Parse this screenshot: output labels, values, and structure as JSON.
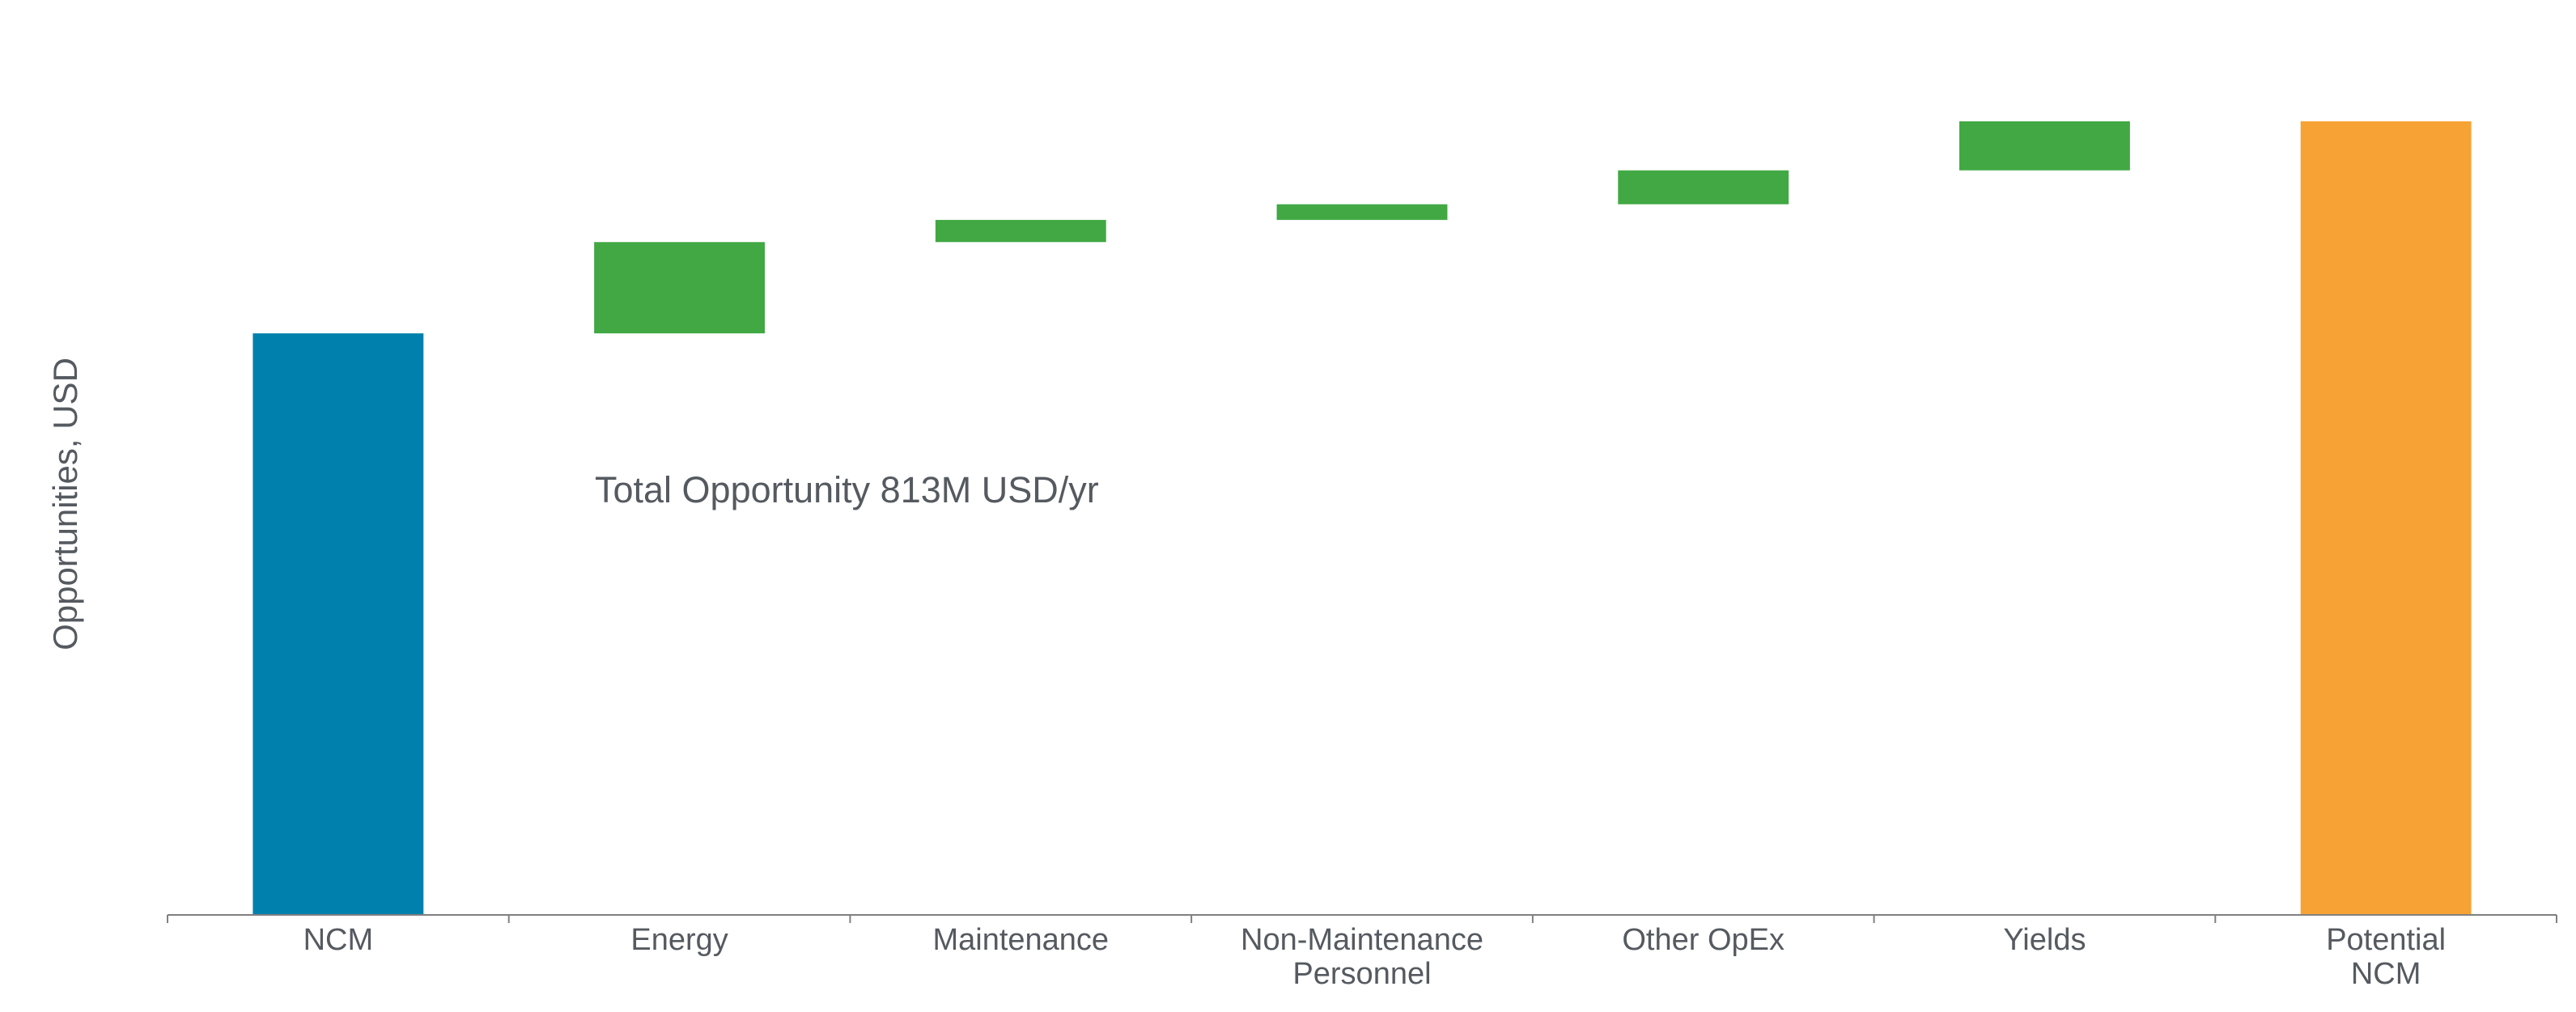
{
  "chart_data": {
    "type": "waterfall",
    "annotation": "Total Opportunity 813M USD/yr",
    "y_label": "Opportunities, USD",
    "categories": [
      "NCM",
      "Energy",
      "Maintenance",
      "Non-Maintenance\nPersonnel",
      "Other OpEx",
      "Yields",
      "Potential\nNCM"
    ],
    "values": [
      2230,
      350,
      85,
      60,
      130,
      188,
      3043
    ],
    "totals": [
      true,
      false,
      false,
      false,
      false,
      false,
      true
    ],
    "colors": [
      "#0081ad",
      "#41a843",
      "#41a843",
      "#41a843",
      "#41a843",
      "#41a843",
      "#f7a234"
    ]
  }
}
